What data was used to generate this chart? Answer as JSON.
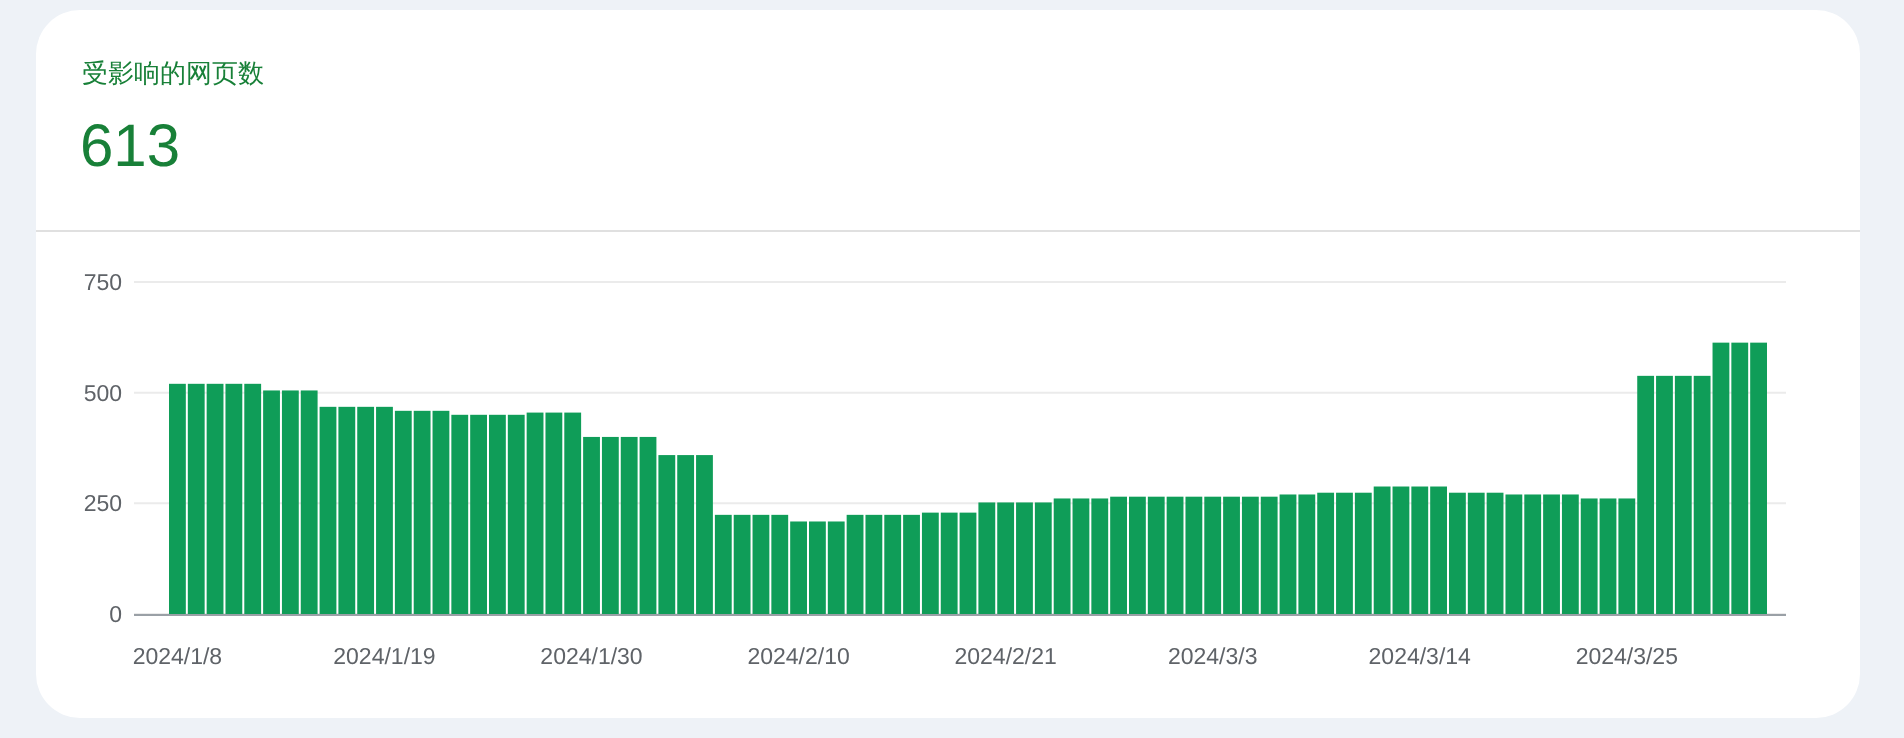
{
  "chart_data": {
    "type": "bar",
    "title": "受影响的网页数",
    "subtitle": "613",
    "categories": [
      "2024/1/8",
      null,
      null,
      null,
      null,
      null,
      null,
      null,
      null,
      null,
      null,
      "2024/1/19",
      null,
      null,
      null,
      null,
      null,
      null,
      null,
      null,
      null,
      null,
      "2024/1/30",
      null,
      null,
      null,
      null,
      null,
      null,
      null,
      null,
      null,
      null,
      "2024/2/10",
      null,
      null,
      null,
      null,
      null,
      null,
      null,
      null,
      null,
      null,
      "2024/2/21",
      null,
      null,
      null,
      null,
      null,
      null,
      null,
      null,
      null,
      null,
      "2024/3/3",
      null,
      null,
      null,
      null,
      null,
      null,
      null,
      null,
      null,
      null,
      "2024/3/14",
      null,
      null,
      null,
      null,
      null,
      null,
      null,
      null,
      null,
      null,
      "2024/3/25",
      null,
      null,
      null,
      null,
      null,
      null,
      null
    ],
    "values": [
      520,
      520,
      520,
      520,
      520,
      505,
      505,
      505,
      468,
      468,
      468,
      468,
      459,
      459,
      459,
      450,
      450,
      450,
      450,
      455,
      455,
      455,
      400,
      400,
      400,
      400,
      359,
      359,
      359,
      224,
      224,
      224,
      224,
      209,
      209,
      209,
      224,
      224,
      224,
      224,
      229,
      229,
      229,
      252,
      252,
      252,
      252,
      261,
      261,
      261,
      265,
      265,
      265,
      265,
      265,
      265,
      265,
      265,
      265,
      270,
      270,
      274,
      274,
      274,
      288,
      288,
      288,
      288,
      274,
      274,
      274,
      270,
      270,
      270,
      270,
      261,
      261,
      261,
      538,
      538,
      538,
      538,
      613,
      613,
      613
    ],
    "color": "#0f9d58",
    "ylim": [
      0,
      750
    ],
    "yticks": [
      0,
      250,
      500,
      750
    ],
    "grid": "y"
  }
}
